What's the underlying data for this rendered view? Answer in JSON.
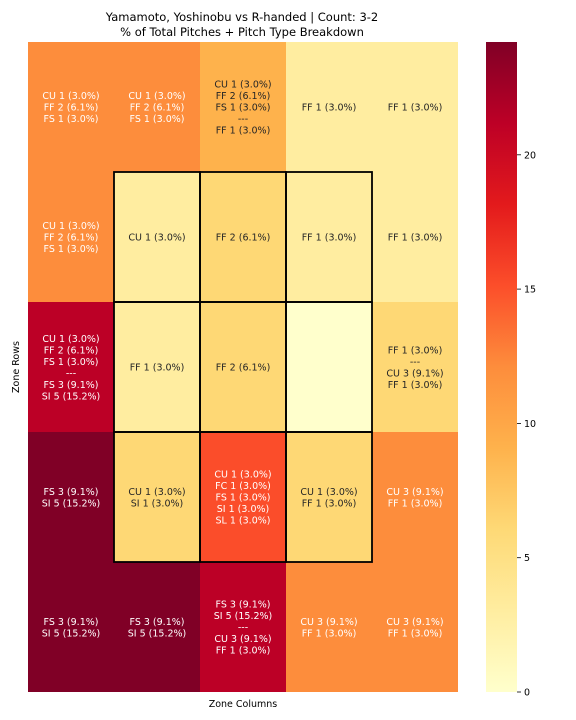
{
  "chart_data": {
    "type": "heatmap",
    "title": "Yamamoto, Yoshinobu vs R-handed | Count: 3-2",
    "subtitle": "% of Total Pitches + Pitch Type Breakdown",
    "xlabel": "Zone Columns",
    "ylabel": "Zone Rows",
    "rows": 5,
    "cols": 5,
    "values": [
      [
        12.1,
        12.1,
        9.1,
        3.0,
        3.0
      ],
      [
        12.1,
        3.0,
        6.1,
        3.0,
        3.0
      ],
      [
        21.2,
        3.0,
        6.1,
        0.0,
        6.1
      ],
      [
        24.2,
        6.1,
        15.2,
        6.1,
        12.1
      ],
      [
        24.2,
        24.2,
        21.2,
        12.1,
        12.1
      ]
    ],
    "labels": [
      [
        [
          "CU 1 (3.0%)",
          "FF 2 (6.1%)",
          "FS 1 (3.0%)"
        ],
        [
          "CU 1 (3.0%)",
          "FF 2 (6.1%)",
          "FS 1 (3.0%)"
        ],
        [
          "CU 1 (3.0%)",
          "FF 2 (6.1%)",
          "FS 1 (3.0%)",
          "---",
          "FF 1 (3.0%)"
        ],
        [
          "FF 1 (3.0%)"
        ],
        [
          "FF 1 (3.0%)"
        ]
      ],
      [
        [
          "CU 1 (3.0%)",
          "FF 2 (6.1%)",
          "FS 1 (3.0%)"
        ],
        [
          "CU 1 (3.0%)"
        ],
        [
          "FF 2 (6.1%)"
        ],
        [
          "FF 1 (3.0%)"
        ],
        [
          "FF 1 (3.0%)"
        ]
      ],
      [
        [
          "CU 1 (3.0%)",
          "FF 2 (6.1%)",
          "FS 1 (3.0%)",
          "---",
          "FS 3 (9.1%)",
          "SI 5 (15.2%)"
        ],
        [
          "FF 1 (3.0%)"
        ],
        [
          "FF 2 (6.1%)"
        ],
        [],
        [
          "FF 1 (3.0%)",
          "---",
          "CU 3 (9.1%)",
          "FF 1 (3.0%)"
        ]
      ],
      [
        [
          "FS 3 (9.1%)",
          "SI 5 (15.2%)"
        ],
        [
          "CU 1 (3.0%)",
          "SI 1 (3.0%)"
        ],
        [
          "CU 1 (3.0%)",
          "FC 1 (3.0%)",
          "FS 1 (3.0%)",
          "SI 1 (3.0%)",
          "SL 1 (3.0%)"
        ],
        [
          "CU 1 (3.0%)",
          "FF 1 (3.0%)"
        ],
        [
          "CU 3 (9.1%)",
          "FF 1 (3.0%)"
        ]
      ],
      [
        [
          "FS 3 (9.1%)",
          "SI 5 (15.2%)"
        ],
        [
          "FS 3 (9.1%)",
          "SI 5 (15.2%)"
        ],
        [
          "FS 3 (9.1%)",
          "SI 5 (15.2%)",
          "---",
          "CU 3 (9.1%)",
          "FF 1 (3.0%)"
        ],
        [
          "CU 3 (9.1%)",
          "FF 1 (3.0%)"
        ],
        [
          "CU 3 (9.1%)",
          "FF 1 (3.0%)"
        ]
      ]
    ],
    "strike_zone": {
      "row_start": 1,
      "row_end": 3,
      "col_start": 1,
      "col_end": 3
    },
    "colorbar": {
      "min": 0,
      "max": 24.2,
      "ticks": [
        0,
        5,
        10,
        15,
        20
      ]
    },
    "colormap": "YlOrRd",
    "grid": false
  }
}
